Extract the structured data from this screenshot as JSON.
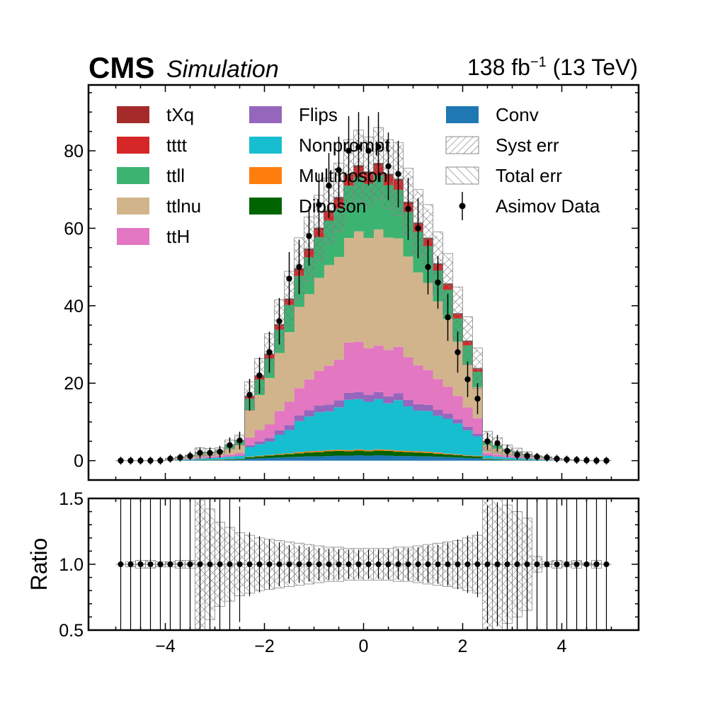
{
  "header": {
    "experiment": "CMS",
    "status": "Simulation",
    "lumi": "138 fb",
    "lumi_exp": "−1",
    "energy": " (13 TeV)"
  },
  "chart_data": {
    "type": "histogram",
    "bin_edges": [
      -5.0,
      -4.8,
      -4.6,
      -4.4,
      -4.2,
      -4.0,
      -3.8,
      -3.6,
      -3.4,
      -3.2,
      -3.0,
      -2.8,
      -2.6,
      -2.4,
      -2.2,
      -2.0,
      -1.8,
      -1.6,
      -1.4,
      -1.2,
      -1.0,
      -0.8,
      -0.6,
      -0.4,
      -0.2,
      0.0,
      0.2,
      0.4,
      0.6,
      0.8,
      1.0,
      1.2,
      1.4,
      1.6,
      1.8,
      2.0,
      2.2,
      2.4,
      2.6,
      2.8,
      3.0,
      3.2,
      3.4,
      3.6,
      3.8,
      4.0,
      4.2,
      4.4,
      4.6,
      4.8,
      5.0
    ],
    "main_panel": {
      "ylim": [
        -5,
        97
      ],
      "yticks": [
        0,
        20,
        40,
        60,
        80
      ],
      "stack_order": [
        "Conv",
        "Diboson",
        "Multiboson",
        "Nonprompt",
        "Flips",
        "ttH",
        "ttlnu",
        "ttll",
        "tttt",
        "tXq"
      ],
      "series": [
        {
          "name": "Conv",
          "color": "#1f77b4",
          "values": [
            0,
            0,
            0,
            0,
            0,
            0.05,
            0.05,
            0.1,
            0.1,
            0.1,
            0.15,
            0.2,
            0.25,
            0.5,
            0.6,
            0.7,
            0.8,
            0.9,
            1.0,
            1.1,
            1.1,
            1.2,
            1.3,
            1.3,
            1.4,
            1.3,
            1.4,
            1.3,
            1.2,
            1.2,
            1.1,
            1.1,
            1.0,
            0.9,
            0.8,
            0.7,
            0.6,
            0.25,
            0.2,
            0.15,
            0.1,
            0.1,
            0.1,
            0.05,
            0.05,
            0,
            0,
            0,
            0,
            0
          ]
        },
        {
          "name": "Diboson",
          "color": "#006400",
          "values": [
            0,
            0,
            0,
            0,
            0,
            0,
            0.05,
            0.05,
            0.1,
            0.1,
            0.1,
            0.15,
            0.2,
            0.4,
            0.5,
            0.6,
            0.7,
            0.8,
            0.9,
            1.0,
            1.1,
            1.2,
            1.2,
            1.1,
            1.2,
            1.1,
            1.2,
            1.2,
            1.1,
            1.0,
            1.0,
            0.9,
            0.8,
            0.7,
            0.6,
            0.5,
            0.5,
            0.2,
            0.15,
            0.1,
            0.1,
            0.1,
            0.05,
            0.05,
            0,
            0,
            0,
            0,
            0,
            0
          ]
        },
        {
          "name": "Multiboson",
          "color": "#ff7f0e",
          "values": [
            0,
            0,
            0,
            0,
            0,
            0,
            0,
            0,
            0.05,
            0.05,
            0.05,
            0.05,
            0.05,
            0.1,
            0.15,
            0.15,
            0.2,
            0.2,
            0.3,
            0.3,
            0.3,
            0.3,
            0.3,
            0.3,
            0.3,
            0.3,
            0.3,
            0.3,
            0.3,
            0.3,
            0.3,
            0.3,
            0.3,
            0.2,
            0.2,
            0.15,
            0.15,
            0.1,
            0.05,
            0.05,
            0.05,
            0.05,
            0,
            0,
            0,
            0,
            0,
            0,
            0,
            0
          ]
        },
        {
          "name": "Nonprompt",
          "color": "#17becf",
          "values": [
            0,
            0,
            0,
            0,
            0,
            0.1,
            0.15,
            0.2,
            0.3,
            0.4,
            0.5,
            0.6,
            0.7,
            2.5,
            3.0,
            3.5,
            5.0,
            6.0,
            8.0,
            9.0,
            10.0,
            10.0,
            11.0,
            13.0,
            13.0,
            12.5,
            13.0,
            12.0,
            13.0,
            11.5,
            10.5,
            10.5,
            9.5,
            9.0,
            8.0,
            6.5,
            5.0,
            0.7,
            0.6,
            0.5,
            0.4,
            0.3,
            0.2,
            0.15,
            0.1,
            0.05,
            0,
            0,
            0,
            0
          ]
        },
        {
          "name": "Flips",
          "color": "#9467bd",
          "values": [
            0,
            0,
            0,
            0,
            0,
            0,
            0.05,
            0.05,
            0.05,
            0.1,
            0.1,
            0.1,
            0.15,
            0.5,
            0.7,
            0.9,
            1.1,
            1.3,
            1.5,
            1.6,
            1.7,
            1.8,
            1.8,
            1.8,
            1.8,
            1.8,
            1.8,
            1.8,
            1.8,
            1.7,
            1.7,
            1.6,
            1.5,
            1.3,
            1.1,
            0.9,
            0.7,
            0.15,
            0.1,
            0.1,
            0.1,
            0.05,
            0.05,
            0.05,
            0,
            0,
            0,
            0,
            0,
            0
          ]
        },
        {
          "name": "ttH",
          "color": "#e377c2",
          "values": [
            0,
            0,
            0,
            0,
            0,
            0.1,
            0.15,
            0.2,
            0.3,
            0.35,
            0.4,
            0.5,
            0.6,
            2.0,
            3.0,
            3.5,
            5.0,
            6.0,
            7.0,
            8.0,
            9.0,
            10.0,
            10.5,
            13.0,
            13.0,
            12.0,
            12.0,
            12.0,
            12.0,
            11.0,
            10.0,
            9.0,
            8.0,
            7.0,
            6.0,
            5.0,
            4.0,
            0.6,
            0.5,
            0.4,
            0.35,
            0.3,
            0.2,
            0.15,
            0.1,
            0.05,
            0,
            0,
            0,
            0
          ]
        },
        {
          "name": "ttlnu",
          "color": "#d2b48c",
          "values": [
            0,
            0,
            0,
            0,
            0,
            0.2,
            0.3,
            0.5,
            0.8,
            0.8,
            0.8,
            1.5,
            2.0,
            7.0,
            9.0,
            12.0,
            15.0,
            18.0,
            21.0,
            22.0,
            24.0,
            26.0,
            26.5,
            27.0,
            28.5,
            28.5,
            30.0,
            29.0,
            28.0,
            26.0,
            24.0,
            22.5,
            20.0,
            17.5,
            14.0,
            11.0,
            8.0,
            2.0,
            1.5,
            1.0,
            0.8,
            0.5,
            0.4,
            0.3,
            0.2,
            0.1,
            0.05,
            0,
            0,
            0
          ]
        },
        {
          "name": "ttll",
          "color": "#3cb371",
          "values": [
            0,
            0,
            0,
            0,
            0,
            0.1,
            0.2,
            0.3,
            0.5,
            0.3,
            0.4,
            1.0,
            1.3,
            3.0,
            4.0,
            5.0,
            6.0,
            7.0,
            8.0,
            9.5,
            10.5,
            11.5,
            12.5,
            13.5,
            14.0,
            14.0,
            14.0,
            13.5,
            12.5,
            11.5,
            10.5,
            9.5,
            8.0,
            7.5,
            6.0,
            5.0,
            4.0,
            1.0,
            0.8,
            0.5,
            0.4,
            0.3,
            0.2,
            0.2,
            0.1,
            0.05,
            0.05,
            0,
            0,
            0
          ]
        },
        {
          "name": "tttt",
          "color": "#d62728",
          "values": [
            0,
            0,
            0,
            0,
            0,
            0,
            0,
            0,
            0,
            0,
            0,
            0.05,
            0.05,
            0.5,
            0.7,
            0.9,
            1.0,
            1.2,
            1.4,
            1.6,
            1.8,
            2.0,
            2.2,
            2.3,
            2.4,
            2.4,
            2.4,
            2.3,
            2.2,
            2.0,
            1.8,
            1.6,
            1.4,
            1.2,
            1.0,
            0.9,
            0.7,
            0.05,
            0.05,
            0,
            0,
            0,
            0,
            0,
            0,
            0,
            0,
            0,
            0,
            0
          ]
        },
        {
          "name": "tXq",
          "color": "#a52a2a",
          "values": [
            0,
            0,
            0,
            0,
            0,
            0,
            0,
            0,
            0,
            0,
            0,
            0,
            0,
            0.2,
            0.3,
            0.3,
            0.4,
            0.4,
            0.5,
            0.6,
            0.6,
            0.6,
            0.7,
            0.7,
            0.6,
            0.7,
            0.7,
            0.6,
            0.6,
            0.6,
            0.5,
            0.5,
            0.4,
            0.4,
            0.3,
            0.3,
            0.2,
            0,
            0,
            0,
            0,
            0,
            0,
            0,
            0,
            0,
            0,
            0,
            0,
            0
          ]
        }
      ],
      "data_points": {
        "name": "Asimov Data",
        "x": [
          -4.9,
          -4.7,
          -4.5,
          -4.3,
          -4.1,
          -3.9,
          -3.7,
          -3.5,
          -3.3,
          -3.1,
          -2.9,
          -2.7,
          -2.5,
          -2.3,
          -2.1,
          -1.9,
          -1.7,
          -1.5,
          -1.3,
          -1.1,
          -0.9,
          -0.7,
          -0.5,
          -0.3,
          -0.1,
          0.1,
          0.3,
          0.5,
          0.7,
          0.9,
          1.1,
          1.3,
          1.5,
          1.7,
          1.9,
          2.1,
          2.3,
          2.5,
          2.7,
          2.9,
          3.1,
          3.3,
          3.5,
          3.7,
          3.9,
          4.1,
          4.3,
          4.5,
          4.7,
          4.9
        ],
        "y": [
          0,
          0,
          0,
          0,
          0,
          0.5,
          0.8,
          1.2,
          2.0,
          2.0,
          2.3,
          4.0,
          5.2,
          17.0,
          22.0,
          28.0,
          36.0,
          47.0,
          50.0,
          58.0,
          66.0,
          71.0,
          75.0,
          80.0,
          81.0,
          80.0,
          81.0,
          76.0,
          74.0,
          65.0,
          60.0,
          50.0,
          46.0,
          37.0,
          28.0,
          21.0,
          16.0,
          5.0,
          4.5,
          2.5,
          1.5,
          1.2,
          1.0,
          0.8,
          0.5,
          0.3,
          0.2,
          0.1,
          0,
          0
        ]
      }
    },
    "ratio_panel": {
      "ylabel": "Ratio",
      "ylim": [
        0.5,
        1.5
      ],
      "yticks": [
        "0.5",
        "1.0",
        "1.5"
      ],
      "syst_half_width": [
        0,
        0.02,
        0.03,
        0.03,
        0.02,
        0.02,
        0.03,
        0.03,
        0.5,
        0.35,
        0.28,
        0.22,
        0.2,
        0.18,
        0.17,
        0.16,
        0.15,
        0.14,
        0.13,
        0.13,
        0.12,
        0.12,
        0.12,
        0.11,
        0.11,
        0.11,
        0.11,
        0.11,
        0.12,
        0.12,
        0.13,
        0.13,
        0.14,
        0.15,
        0.16,
        0.18,
        0.2,
        0.5,
        0.45,
        0.4,
        0.35,
        0.3,
        0.05,
        0.02,
        0.03,
        0.02,
        0.03,
        0.01,
        0.03,
        0
      ],
      "total_half_width": [
        0,
        0.02,
        0.03,
        0.03,
        0.02,
        0.02,
        0.03,
        0.03,
        0.5,
        0.42,
        0.32,
        0.28,
        0.24,
        0.22,
        0.2,
        0.19,
        0.18,
        0.17,
        0.16,
        0.15,
        0.14,
        0.13,
        0.13,
        0.12,
        0.12,
        0.12,
        0.12,
        0.12,
        0.13,
        0.13,
        0.14,
        0.15,
        0.16,
        0.17,
        0.18,
        0.2,
        0.22,
        0.5,
        0.5,
        0.45,
        0.4,
        0.35,
        0.06,
        0.02,
        0.03,
        0.02,
        0.03,
        0.01,
        0.03,
        0
      ],
      "ratio": 1.0
    },
    "xaxis": {
      "xlim": [
        -5.55,
        5.55
      ],
      "ticks": [
        -4,
        -2,
        0,
        2,
        4
      ],
      "tick_labels": [
        "−4",
        "−2",
        "0",
        "2",
        "4"
      ]
    },
    "legend": {
      "placement": "top",
      "columns": 3,
      "entries": [
        {
          "label": "tXq",
          "kind": "fill",
          "color": "#a52a2a"
        },
        {
          "label": "tttt",
          "kind": "fill",
          "color": "#d62728"
        },
        {
          "label": "ttll",
          "kind": "fill",
          "color": "#3cb371"
        },
        {
          "label": "ttlnu",
          "kind": "fill",
          "color": "#d2b48c"
        },
        {
          "label": "ttH",
          "kind": "fill",
          "color": "#e377c2"
        },
        {
          "label": "Flips",
          "kind": "fill",
          "color": "#9467bd"
        },
        {
          "label": "Nonprompt",
          "kind": "fill",
          "color": "#17becf"
        },
        {
          "label": "Multiboson",
          "kind": "fill",
          "color": "#ff7f0e"
        },
        {
          "label": "Diboson",
          "kind": "fill",
          "color": "#006400"
        },
        {
          "label": "Conv",
          "kind": "fill",
          "color": "#1f77b4"
        },
        {
          "label": "Syst err",
          "kind": "hatch-fwd"
        },
        {
          "label": "Total err",
          "kind": "hatch-back"
        },
        {
          "label": "Asimov Data",
          "kind": "marker"
        }
      ]
    }
  }
}
